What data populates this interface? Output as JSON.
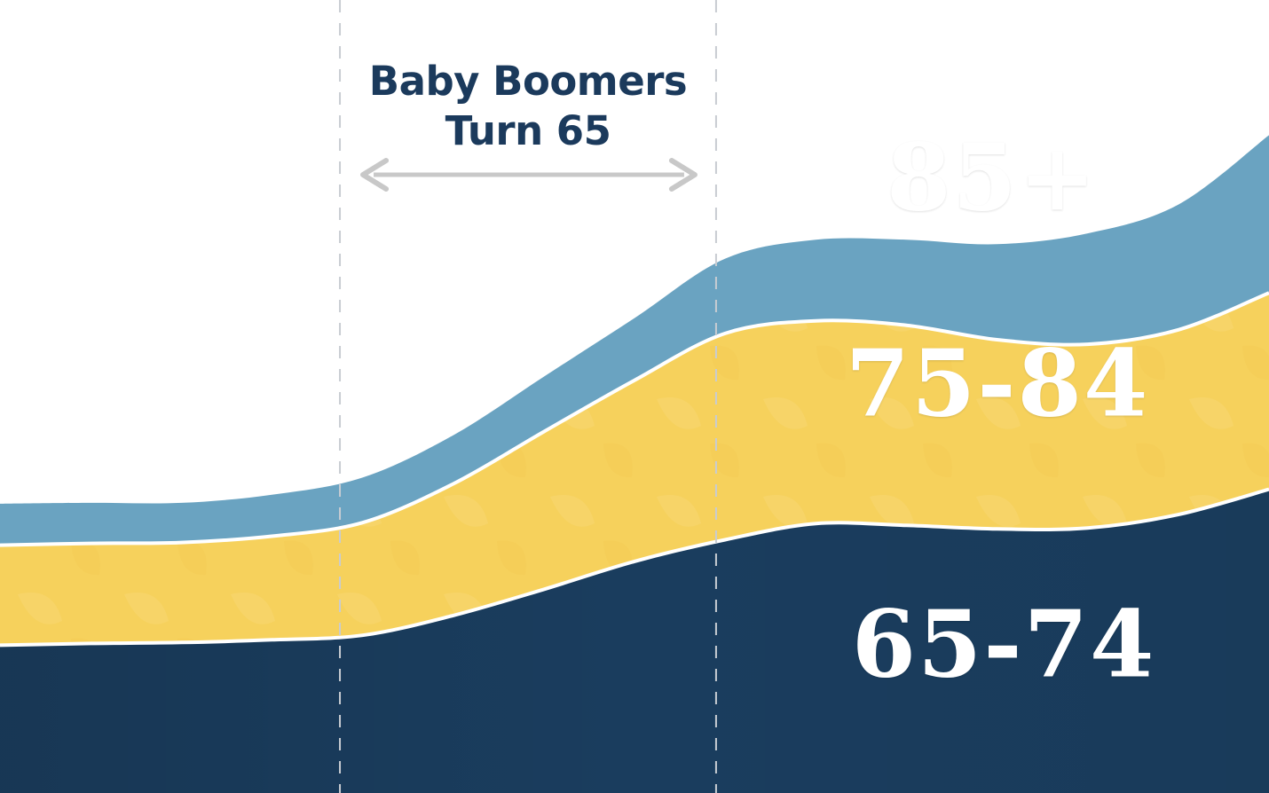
{
  "chart_data": {
    "type": "area",
    "stacked": true,
    "title": "",
    "xlabel": "",
    "ylabel": "",
    "x": [
      0,
      1,
      2,
      3,
      4,
      5,
      6,
      7,
      8,
      9,
      10,
      11,
      12,
      13,
      14
    ],
    "series": [
      {
        "name": "65-74",
        "color": "#1a3d5e",
        "values": [
          164,
          166,
          167,
          170,
          175,
          197,
          226,
          257,
          281,
          299,
          297,
          293,
          294,
          309,
          337
        ]
      },
      {
        "name": "75-84",
        "color": "#f6d15c",
        "values": [
          111,
          111,
          111,
          115,
          125,
          146,
          175,
          201,
          229,
          225,
          222,
          210,
          204,
          205,
          218
        ]
      },
      {
        "name": "85+",
        "color": "#6aa3c1",
        "values": [
          46,
          45,
          44,
          46,
          50,
          54,
          61,
          69,
          83,
          90,
          95,
          106,
          123,
          139,
          175
        ]
      }
    ],
    "ylim": [
      0,
      880
    ],
    "grid": false,
    "annotation": {
      "lines": [
        "Baby Boomers",
        "Turn 65"
      ],
      "span_x": [
        3.75,
        7.9
      ]
    },
    "colors": {
      "arrow": "#c8c8c8",
      "divider": "#c8ccd2",
      "annotation_text": "#1b3a5c"
    }
  }
}
